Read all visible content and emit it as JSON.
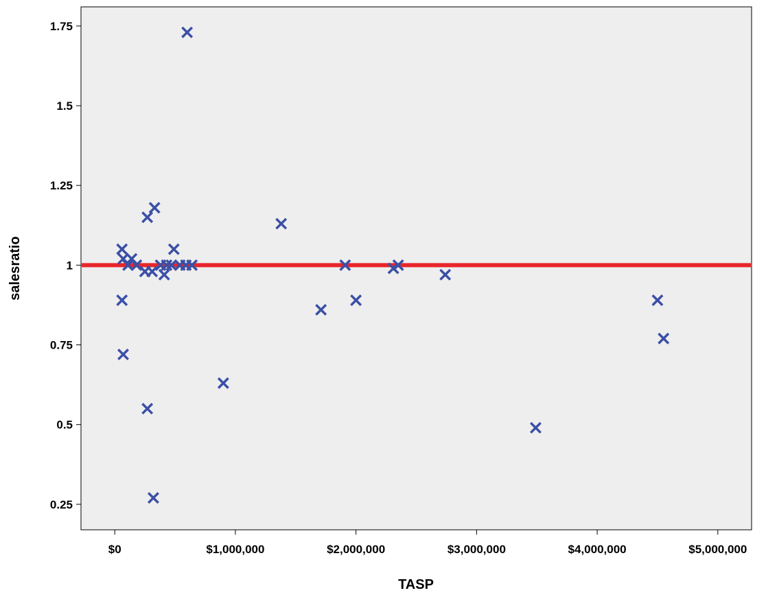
{
  "chart_data": {
    "type": "scatter",
    "title": "",
    "xlabel": "TASP",
    "ylabel": "salesratio",
    "xlim": [
      -280000,
      5280000
    ],
    "ylim": [
      0.17,
      1.81
    ],
    "x_ticks": [
      0,
      1000000,
      2000000,
      3000000,
      4000000,
      5000000
    ],
    "x_tick_labels": [
      "$0",
      "$1,000,000",
      "$2,000,000",
      "$3,000,000",
      "$4,000,000",
      "$5,000,000"
    ],
    "y_ticks": [
      0.25,
      0.5,
      0.75,
      1,
      1.25,
      1.5,
      1.75
    ],
    "y_tick_labels": [
      "0.25",
      "0.5",
      "0.75",
      "1",
      "1.25",
      "1.5",
      "1.75"
    ],
    "grid": false,
    "background": "#eeeeee",
    "marker": "x",
    "marker_color": "#3b4fa6",
    "reference_line": {
      "axis": "y",
      "value": 1,
      "color": "#e8262b"
    },
    "points": [
      {
        "x": 600000,
        "y": 1.73
      },
      {
        "x": 330000,
        "y": 1.18
      },
      {
        "x": 270000,
        "y": 1.15
      },
      {
        "x": 1380000,
        "y": 1.13
      },
      {
        "x": 60000,
        "y": 1.05
      },
      {
        "x": 490000,
        "y": 1.05
      },
      {
        "x": 70000,
        "y": 1.02
      },
      {
        "x": 140000,
        "y": 1.02
      },
      {
        "x": 110000,
        "y": 1.0
      },
      {
        "x": 180000,
        "y": 1.0
      },
      {
        "x": 380000,
        "y": 1.0
      },
      {
        "x": 430000,
        "y": 1.0
      },
      {
        "x": 470000,
        "y": 1.0
      },
      {
        "x": 540000,
        "y": 1.0
      },
      {
        "x": 590000,
        "y": 1.0
      },
      {
        "x": 640000,
        "y": 1.0
      },
      {
        "x": 1910000,
        "y": 1.0
      },
      {
        "x": 2350000,
        "y": 1.0
      },
      {
        "x": 2310000,
        "y": 0.99
      },
      {
        "x": 250000,
        "y": 0.98
      },
      {
        "x": 310000,
        "y": 0.98
      },
      {
        "x": 2740000,
        "y": 0.97
      },
      {
        "x": 410000,
        "y": 0.97
      },
      {
        "x": 60000,
        "y": 0.89
      },
      {
        "x": 2000000,
        "y": 0.89
      },
      {
        "x": 4500000,
        "y": 0.89
      },
      {
        "x": 1710000,
        "y": 0.86
      },
      {
        "x": 4550000,
        "y": 0.77
      },
      {
        "x": 70000,
        "y": 0.72
      },
      {
        "x": 900000,
        "y": 0.63
      },
      {
        "x": 270000,
        "y": 0.55
      },
      {
        "x": 3490000,
        "y": 0.49
      },
      {
        "x": 320000,
        "y": 0.27
      }
    ]
  }
}
